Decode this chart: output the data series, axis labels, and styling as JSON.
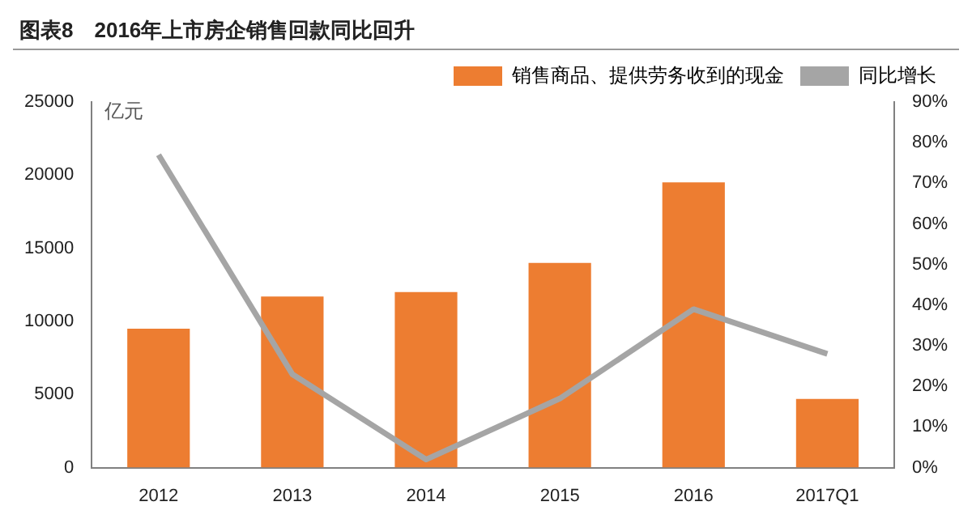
{
  "chart_data": {
    "type": "bar",
    "title": "图表8　2016年上市房企销售回款同比回升",
    "ylabel": "亿元",
    "categories": [
      "2012",
      "2013",
      "2014",
      "2015",
      "2016",
      "2017Q1"
    ],
    "series": [
      {
        "name": "销售商品、提供劳务收到的现金",
        "color": "#ed7d31",
        "values": [
          9500,
          11700,
          12000,
          14000,
          19500,
          4700
        ]
      },
      {
        "name": "同比增长",
        "type": "line",
        "axis": "y2",
        "color": "#a5a5a5",
        "values": [
          77,
          23,
          2,
          17,
          39,
          28
        ]
      }
    ],
    "ylim": [
      0,
      25000
    ],
    "yticks": [
      0,
      5000,
      10000,
      15000,
      20000,
      25000
    ],
    "y2lim": [
      0,
      90
    ],
    "y2ticks": [
      {
        "value": 0,
        "label": "0%"
      },
      {
        "value": 10,
        "label": "10%"
      },
      {
        "value": 20,
        "label": "20%"
      },
      {
        "value": 30,
        "label": "30%"
      },
      {
        "value": 40,
        "label": "40%"
      },
      {
        "value": 50,
        "label": "50%"
      },
      {
        "value": 60,
        "label": "60%"
      },
      {
        "value": 70,
        "label": "70%"
      },
      {
        "value": 80,
        "label": "80%"
      },
      {
        "value": 90,
        "label": "90%"
      }
    ],
    "grid": false,
    "legend": "top",
    "marker": "none"
  }
}
